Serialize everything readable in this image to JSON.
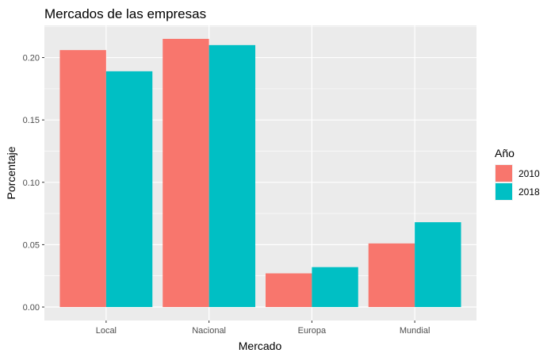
{
  "chart_data": {
    "type": "bar",
    "title": "Mercados de las empresas",
    "xlabel": "Mercado",
    "ylabel": "Porcentaje",
    "categories": [
      "Local",
      "Nacional",
      "Europa",
      "Mundial"
    ],
    "series": [
      {
        "name": "2010",
        "color": "#F8766D",
        "values": [
          0.206,
          0.215,
          0.027,
          0.051
        ]
      },
      {
        "name": "2018",
        "color": "#00BFC4",
        "values": [
          0.189,
          0.21,
          0.032,
          0.068
        ]
      }
    ],
    "ylim": [
      -0.0108,
      0.2258
    ],
    "yticks": [
      0.0,
      0.05,
      0.1,
      0.15,
      0.2
    ],
    "ytick_labels": [
      "0.00",
      "0.05",
      "0.10",
      "0.15",
      "0.20"
    ],
    "legend_title": "Año",
    "legend_position": "right",
    "grid": true,
    "panel_background": "#EBEBEB"
  }
}
